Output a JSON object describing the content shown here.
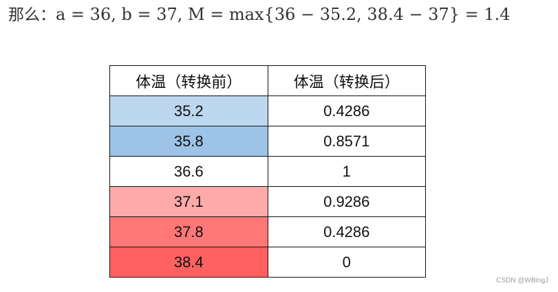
{
  "formula": {
    "prefix": "那么：",
    "expression": "a = 36, b = 37, M = max{36 − 35.2, 38.4 − 37} = 1.4"
  },
  "table": {
    "headers": [
      "体温（转换前）",
      "体温（转换后）"
    ],
    "rows": [
      {
        "before": "35.2",
        "after": "0.4286",
        "color": "#bdd7ee"
      },
      {
        "before": "35.8",
        "after": "0.8571",
        "color": "#9dc3e6"
      },
      {
        "before": "36.6",
        "after": "1",
        "color": "#ffffff"
      },
      {
        "before": "37.1",
        "after": "0.9286",
        "color": "#ffaaaa"
      },
      {
        "before": "37.8",
        "after": "0.4286",
        "color": "#ff7777"
      },
      {
        "before": "38.4",
        "after": "0",
        "color": "#ff6161"
      }
    ]
  },
  "watermark": "CSDN @WBingJ"
}
